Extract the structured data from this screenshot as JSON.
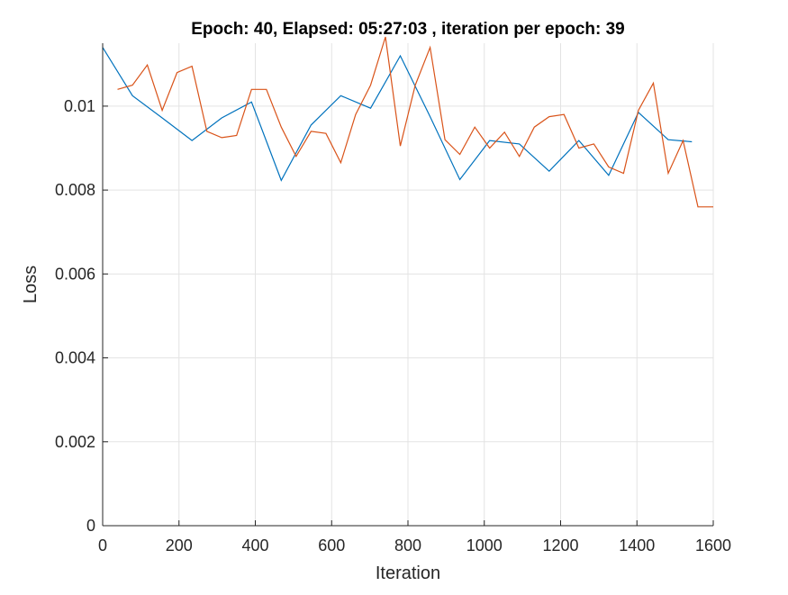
{
  "chart_data": {
    "type": "line",
    "title": "Epoch: 40, Elapsed: 05:27:03  , iteration per epoch: 39",
    "xlabel": "Iteration",
    "ylabel": "Loss",
    "xlim": [
      0,
      1600
    ],
    "ylim": [
      0,
      0.0115
    ],
    "xticks": [
      0,
      200,
      400,
      600,
      800,
      1000,
      1200,
      1400,
      1600
    ],
    "xtick_labels": [
      "0",
      "200",
      "400",
      "600",
      "800",
      "1000",
      "1200",
      "1400",
      "1600"
    ],
    "yticks": [
      0,
      0.002,
      0.004,
      0.006,
      0.008,
      0.01
    ],
    "ytick_labels": [
      "0",
      "0.002",
      "0.004",
      "0.006",
      "0.008",
      "0.01"
    ],
    "grid": true,
    "legend": "none",
    "series": [
      {
        "color": "#0072bd",
        "x": [
          0,
          78,
          156,
          234,
          312,
          390,
          468,
          546,
          624,
          702,
          780,
          858,
          936,
          1014,
          1092,
          1170,
          1248,
          1326,
          1404,
          1482,
          1544
        ],
        "y": [
          0.0114,
          0.01025,
          0.00972,
          0.00918,
          0.00972,
          0.0101,
          0.00823,
          0.00955,
          0.01025,
          0.00995,
          0.0112,
          0.00975,
          0.00825,
          0.00918,
          0.0091,
          0.00845,
          0.00918,
          0.00835,
          0.00985,
          0.0092,
          0.00915
        ]
      },
      {
        "color": "#d95319",
        "x": [
          39,
          78,
          117,
          156,
          195,
          234,
          273,
          312,
          351,
          390,
          429,
          468,
          507,
          546,
          585,
          624,
          663,
          702,
          741,
          780,
          819,
          858,
          897,
          936,
          975,
          1014,
          1053,
          1092,
          1131,
          1170,
          1209,
          1248,
          1287,
          1326,
          1365,
          1404,
          1443,
          1482,
          1521,
          1560,
          1600
        ],
        "y": [
          0.0104,
          0.0105,
          0.01098,
          0.0099,
          0.0108,
          0.01095,
          0.0094,
          0.00925,
          0.0093,
          0.0104,
          0.0104,
          0.0095,
          0.0088,
          0.0094,
          0.00935,
          0.00865,
          0.0098,
          0.0105,
          0.01165,
          0.00905,
          0.0105,
          0.0114,
          0.0092,
          0.00885,
          0.0095,
          0.009,
          0.00938,
          0.0088,
          0.0095,
          0.00975,
          0.0098,
          0.009,
          0.0091,
          0.00855,
          0.0084,
          0.0099,
          0.01055,
          0.0084,
          0.00918,
          0.0076,
          0.0076
        ]
      }
    ]
  }
}
